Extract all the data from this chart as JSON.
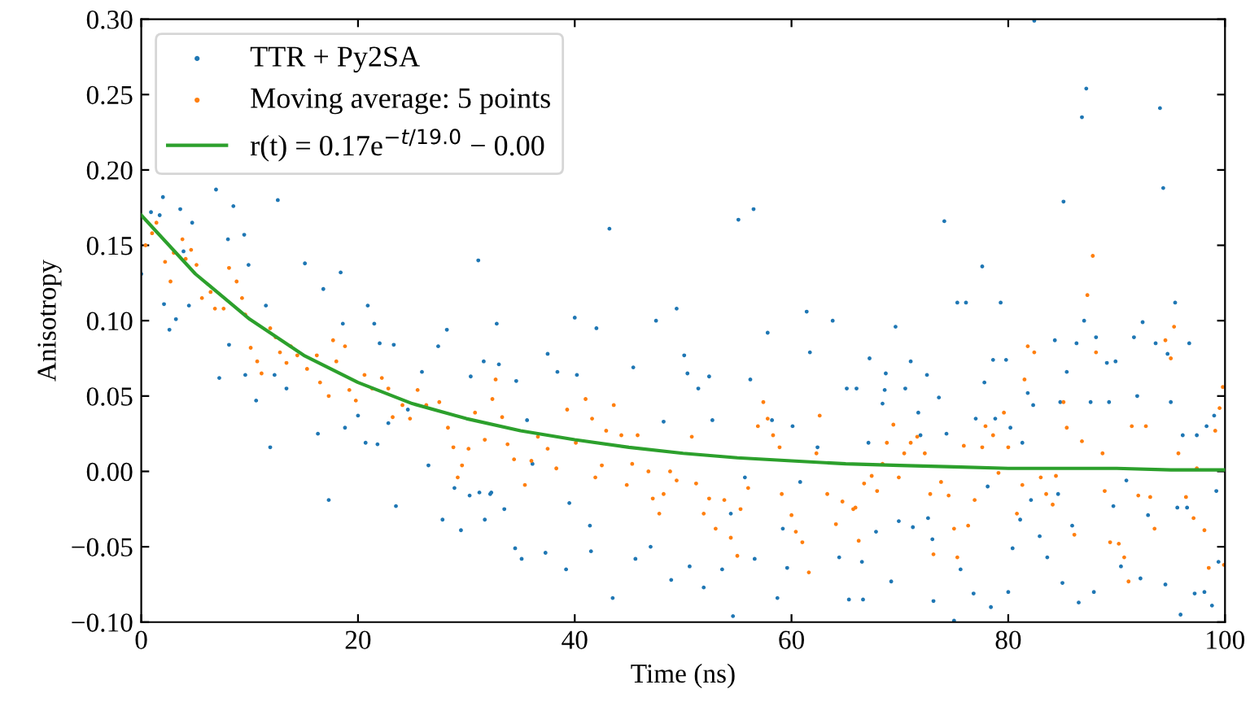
{
  "chart_data": {
    "type": "scatter",
    "xlabel": "Time (ns)",
    "ylabel": "Anisotropy",
    "xlim": [
      0,
      100
    ],
    "ylim": [
      -0.1,
      0.3
    ],
    "xticks": [
      0,
      20,
      40,
      60,
      80,
      100
    ],
    "yticks": [
      {
        "value": -0.1,
        "label": "−0.10"
      },
      {
        "value": -0.05,
        "label": "−0.05"
      },
      {
        "value": 0,
        "label": "0.00"
      },
      {
        "value": 0.05,
        "label": "0.05"
      },
      {
        "value": 0.1,
        "label": "0.10"
      },
      {
        "value": 0.15,
        "label": "0.15"
      },
      {
        "value": 0.2,
        "label": "0.20"
      },
      {
        "value": 0.25,
        "label": "0.25"
      },
      {
        "value": 0.3,
        "label": "0.30"
      }
    ],
    "grid": false,
    "legend": "top left",
    "series": [
      {
        "name": "TTR + Py2SA",
        "marker": "circle",
        "color": "#1f77b4",
        "x": [
          2.0,
          0.9,
          1.7,
          0.0,
          2.1,
          2.6,
          3.6,
          3.2,
          3.9,
          4.7,
          4.4,
          6.9,
          8.5,
          8.0,
          9.5,
          9.9,
          7.2,
          8.1,
          9.6,
          10.6,
          11.9,
          12.6,
          11.5,
          12.3,
          13.4,
          15.1,
          16.8,
          16.3,
          17.3,
          18.4,
          18.6,
          18.8,
          20.0,
          20.7,
          20.9,
          21.5,
          21.8,
          22.0,
          22.8,
          23.5,
          23.3,
          24.6,
          25.9,
          26.5,
          27.4,
          27.8,
          28.2,
          28.9,
          29.5,
          30.3,
          30.4,
          31.2,
          31.7,
          32.3,
          31.1,
          32.8,
          31.6,
          33.0,
          32.2,
          33.5,
          34.5,
          35.1,
          34.6,
          35.6,
          36.1,
          37.5,
          37.3,
          38.4,
          39.2,
          39.5,
          40.0,
          40.2,
          41.4,
          42.0,
          41.5,
          43.2,
          43.5,
          45.4,
          45.6,
          47.5,
          47.0,
          48.2,
          48.9,
          49.4,
          50.1,
          50.4,
          50.6,
          51.4,
          51.9,
          52.4,
          52.7,
          53.6,
          54.4,
          54.6,
          55.1,
          56.5,
          56.2,
          55.7,
          56.6,
          57.8,
          58.2,
          58.7,
          59.2,
          59.6,
          60.1,
          60.8,
          61.4,
          61.7,
          62.4,
          63.8,
          64.4,
          65.1,
          65.3,
          66.0,
          66.5,
          66.6,
          67.2,
          67.1,
          67.8,
          68.4,
          68.6,
          68.7,
          69.2,
          69.6,
          69.9,
          70.5,
          71.0,
          71.2,
          71.7,
          71.9,
          72.5,
          72.6,
          73.0,
          73.1,
          74.1,
          73.6,
          74.3,
          75.0,
          75.3,
          76.1,
          75.6,
          76.8,
          77.0,
          77.6,
          77.8,
          78.1,
          78.6,
          78.4,
          78.8,
          79.3,
          79.8,
          80.0,
          80.2,
          80.4,
          81.1,
          81.3,
          81.8,
          82.1,
          82.3,
          82.4,
          82.9,
          83.6,
          84.3,
          84.6,
          84.8,
          85.1,
          85.4,
          85.0,
          85.9,
          86.3,
          86.5,
          86.8,
          87.2,
          87.0,
          87.6,
          88.1,
          87.9,
          89.1,
          89.3,
          89.7,
          89.9,
          90.4,
          90.9,
          91.6,
          91.9,
          92.4,
          92.2,
          92.9,
          93.6,
          94.0,
          94.3,
          94.7,
          94.5,
          95.0,
          95.4,
          95.6,
          95.9,
          96.1,
          96.7,
          96.5,
          97.2,
          97.4,
          98.1,
          98.3,
          98.8,
          99.0,
          99.2,
          99.4
        ],
        "values": [
          0.182,
          0.172,
          0.17,
          0.131,
          0.111,
          0.094,
          0.174,
          0.101,
          0.146,
          0.165,
          0.11,
          0.187,
          0.176,
          0.154,
          0.157,
          0.137,
          0.062,
          0.084,
          0.064,
          0.047,
          0.016,
          0.18,
          0.11,
          0.064,
          0.055,
          0.138,
          0.121,
          0.025,
          -0.019,
          0.132,
          0.098,
          0.029,
          0.037,
          0.019,
          0.11,
          0.098,
          0.018,
          0.085,
          0.032,
          -0.023,
          0.084,
          0.041,
          0.066,
          0.004,
          0.083,
          -0.032,
          0.094,
          -0.011,
          -0.039,
          -0.016,
          0.063,
          -0.014,
          -0.032,
          -0.014,
          0.14,
          0.098,
          0.073,
          0.071,
          -0.015,
          -0.025,
          -0.051,
          -0.058,
          0.06,
          0.034,
          0.005,
          0.078,
          -0.054,
          0.066,
          -0.065,
          -0.021,
          0.102,
          0.064,
          -0.036,
          0.095,
          -0.053,
          0.161,
          -0.084,
          0.069,
          -0.058,
          0.1,
          -0.05,
          0.033,
          -0.072,
          0.108,
          0.077,
          0.065,
          -0.063,
          0.055,
          -0.077,
          0.063,
          0.034,
          -0.065,
          -0.028,
          -0.096,
          0.167,
          0.174,
          0.061,
          -0.004,
          -0.058,
          0.092,
          0.034,
          -0.084,
          -0.038,
          -0.064,
          0.03,
          -0.007,
          0.106,
          0.079,
          0.016,
          0.1,
          -0.057,
          0.055,
          -0.085,
          0.055,
          -0.06,
          -0.085,
          0.075,
          0.019,
          -0.04,
          0.045,
          0.054,
          0.065,
          -0.073,
          0.096,
          -0.033,
          0.055,
          0.073,
          -0.037,
          0.039,
          0.024,
          0.064,
          -0.031,
          -0.045,
          -0.086,
          0.166,
          0.049,
          0.025,
          -0.099,
          0.112,
          0.112,
          -0.065,
          -0.081,
          0.035,
          0.136,
          0.059,
          -0.01,
          0.074,
          -0.09,
          0.035,
          0.112,
          0.074,
          -0.08,
          0.029,
          -0.051,
          -0.032,
          0.019,
          0.052,
          -0.019,
          0.044,
          0.299,
          -0.043,
          -0.057,
          0.087,
          -0.015,
          0.046,
          0.179,
          0.066,
          -0.074,
          -0.036,
          0.085,
          -0.087,
          0.235,
          0.254,
          0.1,
          0.046,
          0.089,
          -0.08,
          0.072,
          0.046,
          -0.023,
          0.073,
          -0.063,
          -0.006,
          0.089,
          0.05,
          0.099,
          -0.071,
          -0.029,
          0.085,
          0.241,
          0.188,
          0.078,
          -0.075,
          0.046,
          0.112,
          -0.024,
          -0.095,
          0.024,
          0.085,
          -0.024,
          -0.081,
          0.024,
          -0.08,
          0.03,
          -0.089,
          0.037,
          -0.013,
          -0.06
        ]
      },
      {
        "name": "Moving average: 5 points",
        "marker": "circle",
        "color": "#ff7f0e",
        "x": [
          0.4,
          1.0,
          1.4,
          2.2,
          2.7,
          3.0,
          3.8,
          4.1,
          4.6,
          5.1,
          5.6,
          6.4,
          6.8,
          7.6,
          8.1,
          8.8,
          9.3,
          9.6,
          10.1,
          10.7,
          11.1,
          11.9,
          12.4,
          12.8,
          13.4,
          13.8,
          14.4,
          15.3,
          16.2,
          16.5,
          17.3,
          17.7,
          18.0,
          18.8,
          19.2,
          19.8,
          20.6,
          21.3,
          22.2,
          22.8,
          23.2,
          24.1,
          24.8,
          25.5,
          26.3,
          27.5,
          28.3,
          28.8,
          29.2,
          29.6,
          30.2,
          30.8,
          31.7,
          32.4,
          32.7,
          33.3,
          33.8,
          34.4,
          35.4,
          36.0,
          36.6,
          37.5,
          38.3,
          39.3,
          40.1,
          41.0,
          41.6,
          41.9,
          42.5,
          42.9,
          43.6,
          44.3,
          44.8,
          45.3,
          45.8,
          46.8,
          47.2,
          47.8,
          48.2,
          48.8,
          49.4,
          50.8,
          51.2,
          51.9,
          52.4,
          53.0,
          53.8,
          54.4,
          55.0,
          55.3,
          56.0,
          56.9,
          57.4,
          57.8,
          58.3,
          58.9,
          59.1,
          60.0,
          60.4,
          61.0,
          61.6,
          62.3,
          62.6,
          63.3,
          64.1,
          64.7,
          65.7,
          65.9,
          66.2,
          66.7,
          67.4,
          67.9,
          68.4,
          68.8,
          69.4,
          69.9,
          70.4,
          71.0,
          71.6,
          72.3,
          72.8,
          73.1,
          73.8,
          74.5,
          75.0,
          75.3,
          75.9,
          76.3,
          76.9,
          77.6,
          77.9,
          78.6,
          79.1,
          79.6,
          80.0,
          80.8,
          81.3,
          81.5,
          81.8,
          82.4,
          83.0,
          83.5,
          84.1,
          84.4,
          85.1,
          85.4,
          86.1,
          86.8,
          87.3,
          87.8,
          88.1,
          88.7,
          88.9,
          89.4,
          90.2,
          90.7,
          91.1,
          91.4,
          92.0,
          92.7,
          93.1,
          93.5,
          94.5,
          95.0,
          95.3,
          95.7,
          96.4,
          97.1,
          97.4,
          98.1,
          98.5,
          99.1,
          99.5,
          99.8,
          99.9
        ],
        "values": [
          0.15,
          0.158,
          0.165,
          0.139,
          0.126,
          0.145,
          0.154,
          0.141,
          0.147,
          0.137,
          0.115,
          0.119,
          0.108,
          0.108,
          0.135,
          0.126,
          0.115,
          0.104,
          0.082,
          0.073,
          0.065,
          0.095,
          0.089,
          0.079,
          0.072,
          0.083,
          0.077,
          0.068,
          0.077,
          0.059,
          0.05,
          0.087,
          0.073,
          0.083,
          0.054,
          0.047,
          0.064,
          0.055,
          0.062,
          0.055,
          0.036,
          0.044,
          0.035,
          0.054,
          0.044,
          0.046,
          0.029,
          0.016,
          -0.004,
          0.004,
          0.015,
          0.039,
          0.021,
          0.048,
          0.061,
          0.036,
          0.018,
          0.008,
          -0.009,
          0.007,
          0.023,
          0.015,
          0.002,
          0.041,
          0.019,
          0.048,
          0.035,
          -0.004,
          0.004,
          0.027,
          0.044,
          0.024,
          -0.009,
          0.005,
          0.024,
          0.0,
          -0.018,
          -0.028,
          -0.015,
          0.0,
          -0.006,
          0.023,
          -0.008,
          -0.028,
          -0.018,
          -0.038,
          -0.019,
          -0.044,
          -0.056,
          -0.025,
          -0.011,
          0.03,
          0.046,
          0.035,
          0.024,
          0.016,
          -0.015,
          -0.029,
          -0.04,
          -0.047,
          -0.067,
          0.012,
          0.037,
          -0.015,
          -0.035,
          -0.02,
          -0.025,
          -0.024,
          -0.046,
          -0.008,
          -0.003,
          -0.013,
          0.005,
          0.019,
          0.031,
          -0.004,
          0.012,
          0.019,
          0.023,
          0.012,
          -0.015,
          -0.055,
          -0.007,
          -0.016,
          -0.038,
          -0.057,
          0.017,
          -0.036,
          -0.019,
          0.016,
          0.03,
          0.024,
          -0.001,
          0.039,
          0.016,
          -0.028,
          -0.009,
          0.061,
          0.083,
          0.079,
          -0.004,
          -0.015,
          -0.022,
          -0.003,
          0.046,
          0.029,
          -0.042,
          0.02,
          0.117,
          0.143,
          0.079,
          0.012,
          -0.013,
          -0.047,
          -0.048,
          -0.057,
          -0.073,
          0.03,
          -0.016,
          0.03,
          -0.017,
          -0.038,
          0.087,
          0.075,
          0.096,
          0.012,
          -0.017,
          -0.031,
          0.002,
          -0.039,
          -0.064,
          0.027,
          0.042,
          0.056,
          -0.062
        ]
      },
      {
        "name": "r(t) = 0.17e$^{−t/19.0}$ − 0.00",
        "type": "line",
        "marker": "none",
        "line_style": "solid",
        "color": "#2ca02c",
        "x": [
          0,
          5,
          10,
          15,
          20,
          25,
          30,
          35,
          40,
          45,
          50,
          55,
          60,
          65,
          70,
          75,
          80,
          85,
          90,
          95,
          100
        ],
        "values": [
          0.17,
          0.131,
          0.101,
          0.077,
          0.059,
          0.045,
          0.035,
          0.027,
          0.021,
          0.016,
          0.012,
          0.009,
          0.007,
          0.005,
          0.004,
          0.003,
          0.002,
          0.002,
          0.002,
          0.001,
          0.001
        ]
      }
    ]
  }
}
